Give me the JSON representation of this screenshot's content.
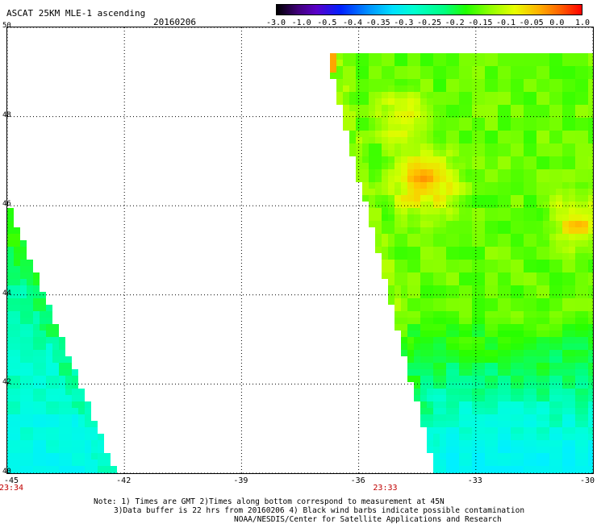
{
  "header": {
    "title": "ASCAT 25KM MLE-1 ascending",
    "date": "20160206"
  },
  "colorbar": {
    "ticks": [
      "-3.0",
      "-1.0",
      "-0.5",
      "-0.4",
      "-0.35",
      "-0.3",
      "-0.25",
      "-0.2",
      "-0.15",
      "-0.1",
      "-0.05",
      "0.0",
      "1.0"
    ]
  },
  "axes": {
    "y_ticks": [
      "50",
      "48",
      "46",
      "44",
      "42",
      "40"
    ],
    "x_ticks": [
      "-45",
      "-42",
      "-39",
      "-36",
      "-33",
      "-30"
    ],
    "y_range": [
      40,
      50
    ],
    "x_range": [
      -45,
      -30
    ],
    "grid": true,
    "grid_style": "dotted"
  },
  "swath_times": [
    {
      "lon": -45,
      "label": "23:34"
    },
    {
      "lon": -35.3,
      "label": "23:33"
    }
  ],
  "notes": {
    "line1": "Note: 1) Times are GMT 2)Times along bottom correspond to measurement at 45N",
    "line2": "3)Data buffer is 22 hrs from 20160206 4) Black wind barbs indicate possible contamination",
    "line3": "NOAA/NESDIS/Center for Satellite Applications and Research"
  },
  "colors": {
    "time_label": "#c00000",
    "frame": "#000000"
  }
}
